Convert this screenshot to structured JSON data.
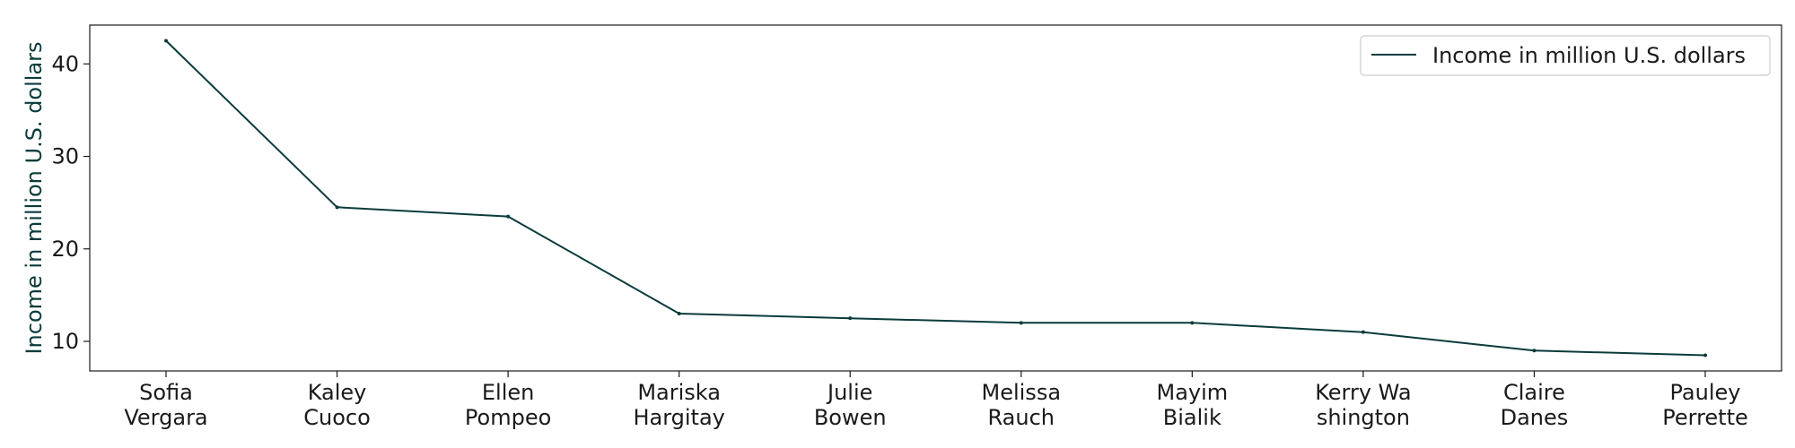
{
  "chart_data": {
    "type": "line",
    "categories": [
      [
        "Sofia",
        "Vergara"
      ],
      [
        "Kaley",
        "Cuoco"
      ],
      [
        "Ellen",
        "Pompeo"
      ],
      [
        "Mariska",
        "Hargitay"
      ],
      [
        "Julie",
        "Bowen"
      ],
      [
        "Melissa",
        "Rauch"
      ],
      [
        "Mayim",
        "Bialik"
      ],
      [
        "Kerry Wa",
        "shington"
      ],
      [
        "Claire",
        "Danes"
      ],
      [
        "Pauley",
        "Perrette"
      ]
    ],
    "series": [
      {
        "name": "Income in million U.S. dollars",
        "values": [
          42.5,
          24.5,
          23.5,
          13,
          12.5,
          12,
          12,
          11,
          9,
          8.5
        ],
        "color": "#0b3b3b"
      }
    ],
    "ylabel": "Income in million U.S. dollars",
    "xlabel": "",
    "ylim": [
      6.8,
      44.2
    ],
    "yticks": [
      10,
      20,
      30,
      40
    ],
    "grid": false,
    "legend_position": "top-right"
  }
}
